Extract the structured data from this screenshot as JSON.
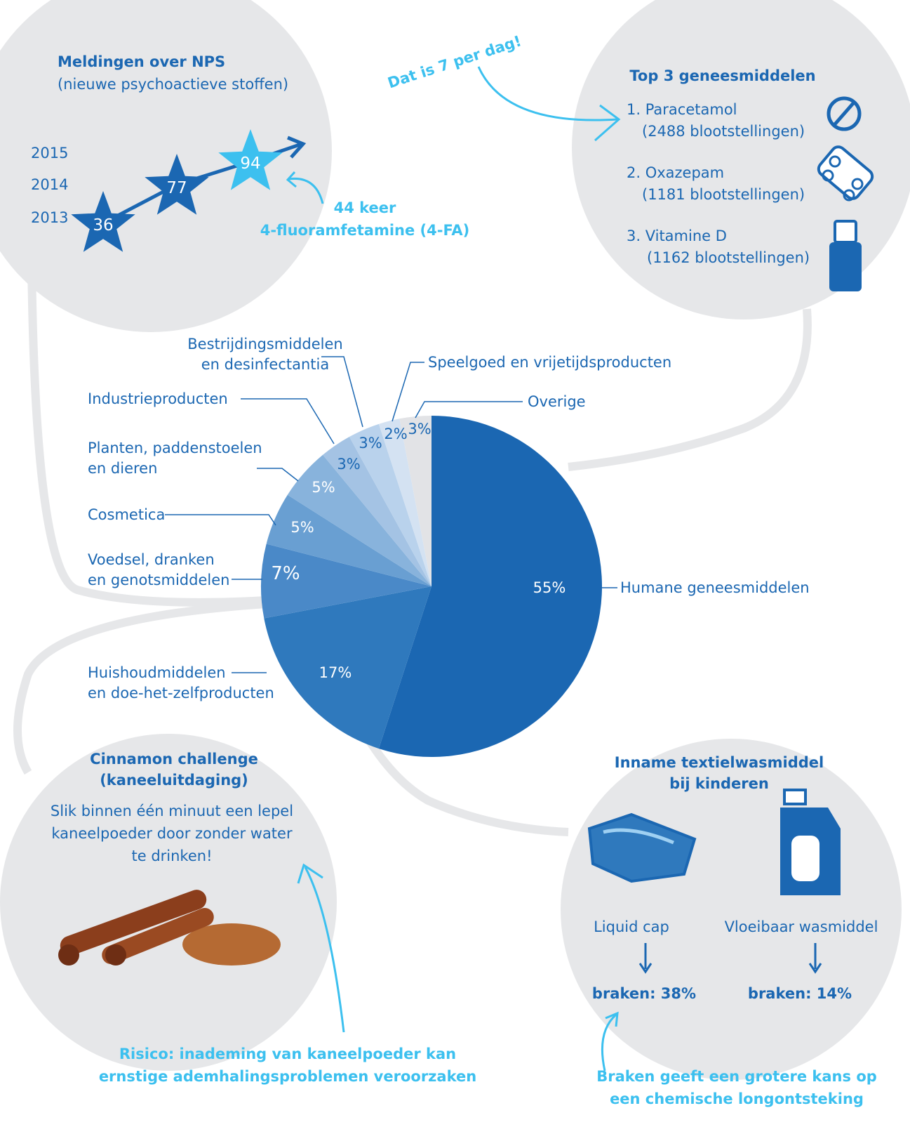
{
  "chart_data": {
    "type": "pie",
    "categories": [
      "Humane geneesmiddelen",
      "Huishoudmiddelen\nen doe-het-zelfproducten",
      "Voedsel, dranken\nen genotsmiddelen",
      "Cosmetica",
      "Planten, paddenstoelen\nen dieren",
      "Industrieproducten",
      "Bestrijdingsmiddelen\nen desinfectantia",
      "Speelgoed en vrijetijdsproducten",
      "Overige"
    ],
    "values": [
      55,
      17,
      7,
      5,
      5,
      3,
      3,
      2,
      3
    ],
    "value_labels": [
      "55%",
      "17%",
      "7%",
      "5%",
      "5%",
      "3%",
      "3%",
      "2%",
      "3%"
    ],
    "colors": [
      "#1b67b2",
      "#2f79bd",
      "#4a89c8",
      "#699fd2",
      "#88b3dc",
      "#a4c3e4",
      "#b9d2ec",
      "#d4e2f2",
      "#e2e3e6"
    ]
  },
  "nps": {
    "title": "Meldingen over NPS",
    "subtitle": "(nieuwe psychoactieve stoffen)",
    "years": [
      "2013",
      "2014",
      "2015"
    ],
    "counts": [
      "36",
      "77",
      "94"
    ],
    "note": [
      "44 keer",
      "4-fluoramfetamine (4-FA)"
    ]
  },
  "callout": "Dat is 7 per dag!",
  "top3": {
    "title": "Top 3 geneesmiddelen",
    "items": [
      {
        "name": "1. Paracetamol",
        "detail": "(2488 blootstellingen)"
      },
      {
        "name": "2. Oxazepam",
        "detail": "(1181 blootstellingen)"
      },
      {
        "name": "3. Vitamine D",
        "detail": "(1162 blootstellingen)"
      }
    ]
  },
  "cinnamon": {
    "title": [
      "Cinnamon challenge",
      "(kaneeluitdaging)"
    ],
    "body": [
      "Slik binnen één minuut een lepel",
      "kaneelpoeder door zonder water",
      "te drinken!"
    ],
    "risk": [
      "Risico: inademing van kaneelpoeder kan",
      "ernstige ademhalingsproblemen veroorzaken"
    ]
  },
  "wash": {
    "title": [
      "Inname textielwasmiddel",
      "bij kinderen"
    ],
    "items": [
      {
        "label": "Liquid cap",
        "result": "braken: 38%"
      },
      {
        "label": "Vloeibaar wasmiddel",
        "result": "braken: 14%"
      }
    ],
    "note": [
      "Braken geeft een grotere kans op",
      "een chemische longontsteking"
    ]
  }
}
